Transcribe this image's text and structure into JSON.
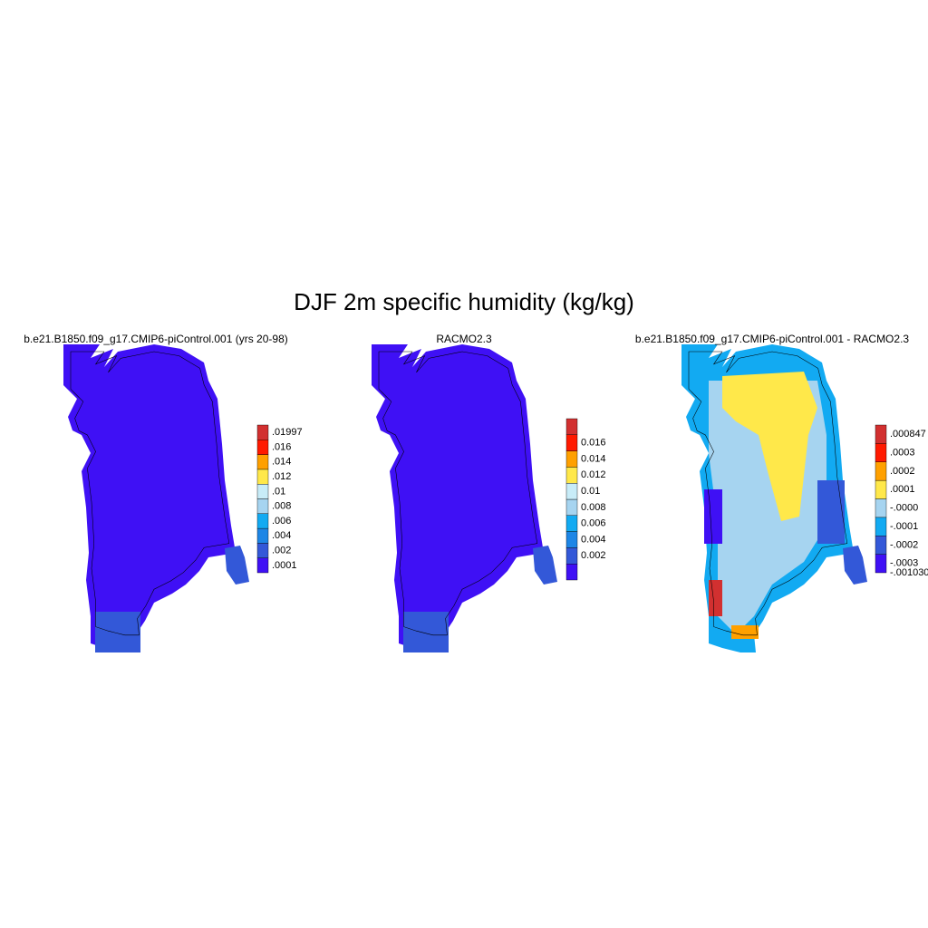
{
  "figure": {
    "title": "DJF 2m specific humidity (kg/kg)",
    "panels": [
      {
        "title": "b.e21.B1850.f09_g17.CMIP6-piControl.001 (yrs 20-98)",
        "colorbar": {
          "labels": [
            ".0001",
            ".002",
            ".004",
            ".006",
            ".008",
            ".01",
            ".012",
            ".014",
            ".016",
            ".01997"
          ],
          "colors": [
            "#3f10f5",
            "#3358d8",
            "#1d86e6",
            "#12aaf2",
            "#a6d4f0",
            "#c8ecf8",
            "#ffe84a",
            "#ffa000",
            "#ff1a00",
            "#d23030"
          ]
        }
      },
      {
        "title": "RACMO2.3",
        "colorbar": {
          "labels": [
            "0.002",
            "0.004",
            "0.006",
            "0.008",
            "0.01",
            "0.012",
            "0.014",
            "0.016"
          ],
          "colors": [
            "#3f10f5",
            "#3358d8",
            "#1d86e6",
            "#12aaf2",
            "#a6d4f0",
            "#c8ecf8",
            "#ffe84a",
            "#ffa000",
            "#ff1a00",
            "#d23030"
          ]
        }
      },
      {
        "title": "b.e21.B1850.f09_g17.CMIP6-piControl.001 - RACMO2.3",
        "colorbar": {
          "labels": [
            "-.001030",
            "-.0003",
            "-.0002",
            "-.0001",
            "-.0000",
            ".0001",
            ".0002",
            ".0003",
            ".000847"
          ],
          "colors": [
            "#3f10f5",
            "#3358d8",
            "#12aaf2",
            "#a6d4f0",
            "#ffe84a",
            "#ffa000",
            "#ff1a00",
            "#d23030"
          ]
        }
      }
    ]
  }
}
